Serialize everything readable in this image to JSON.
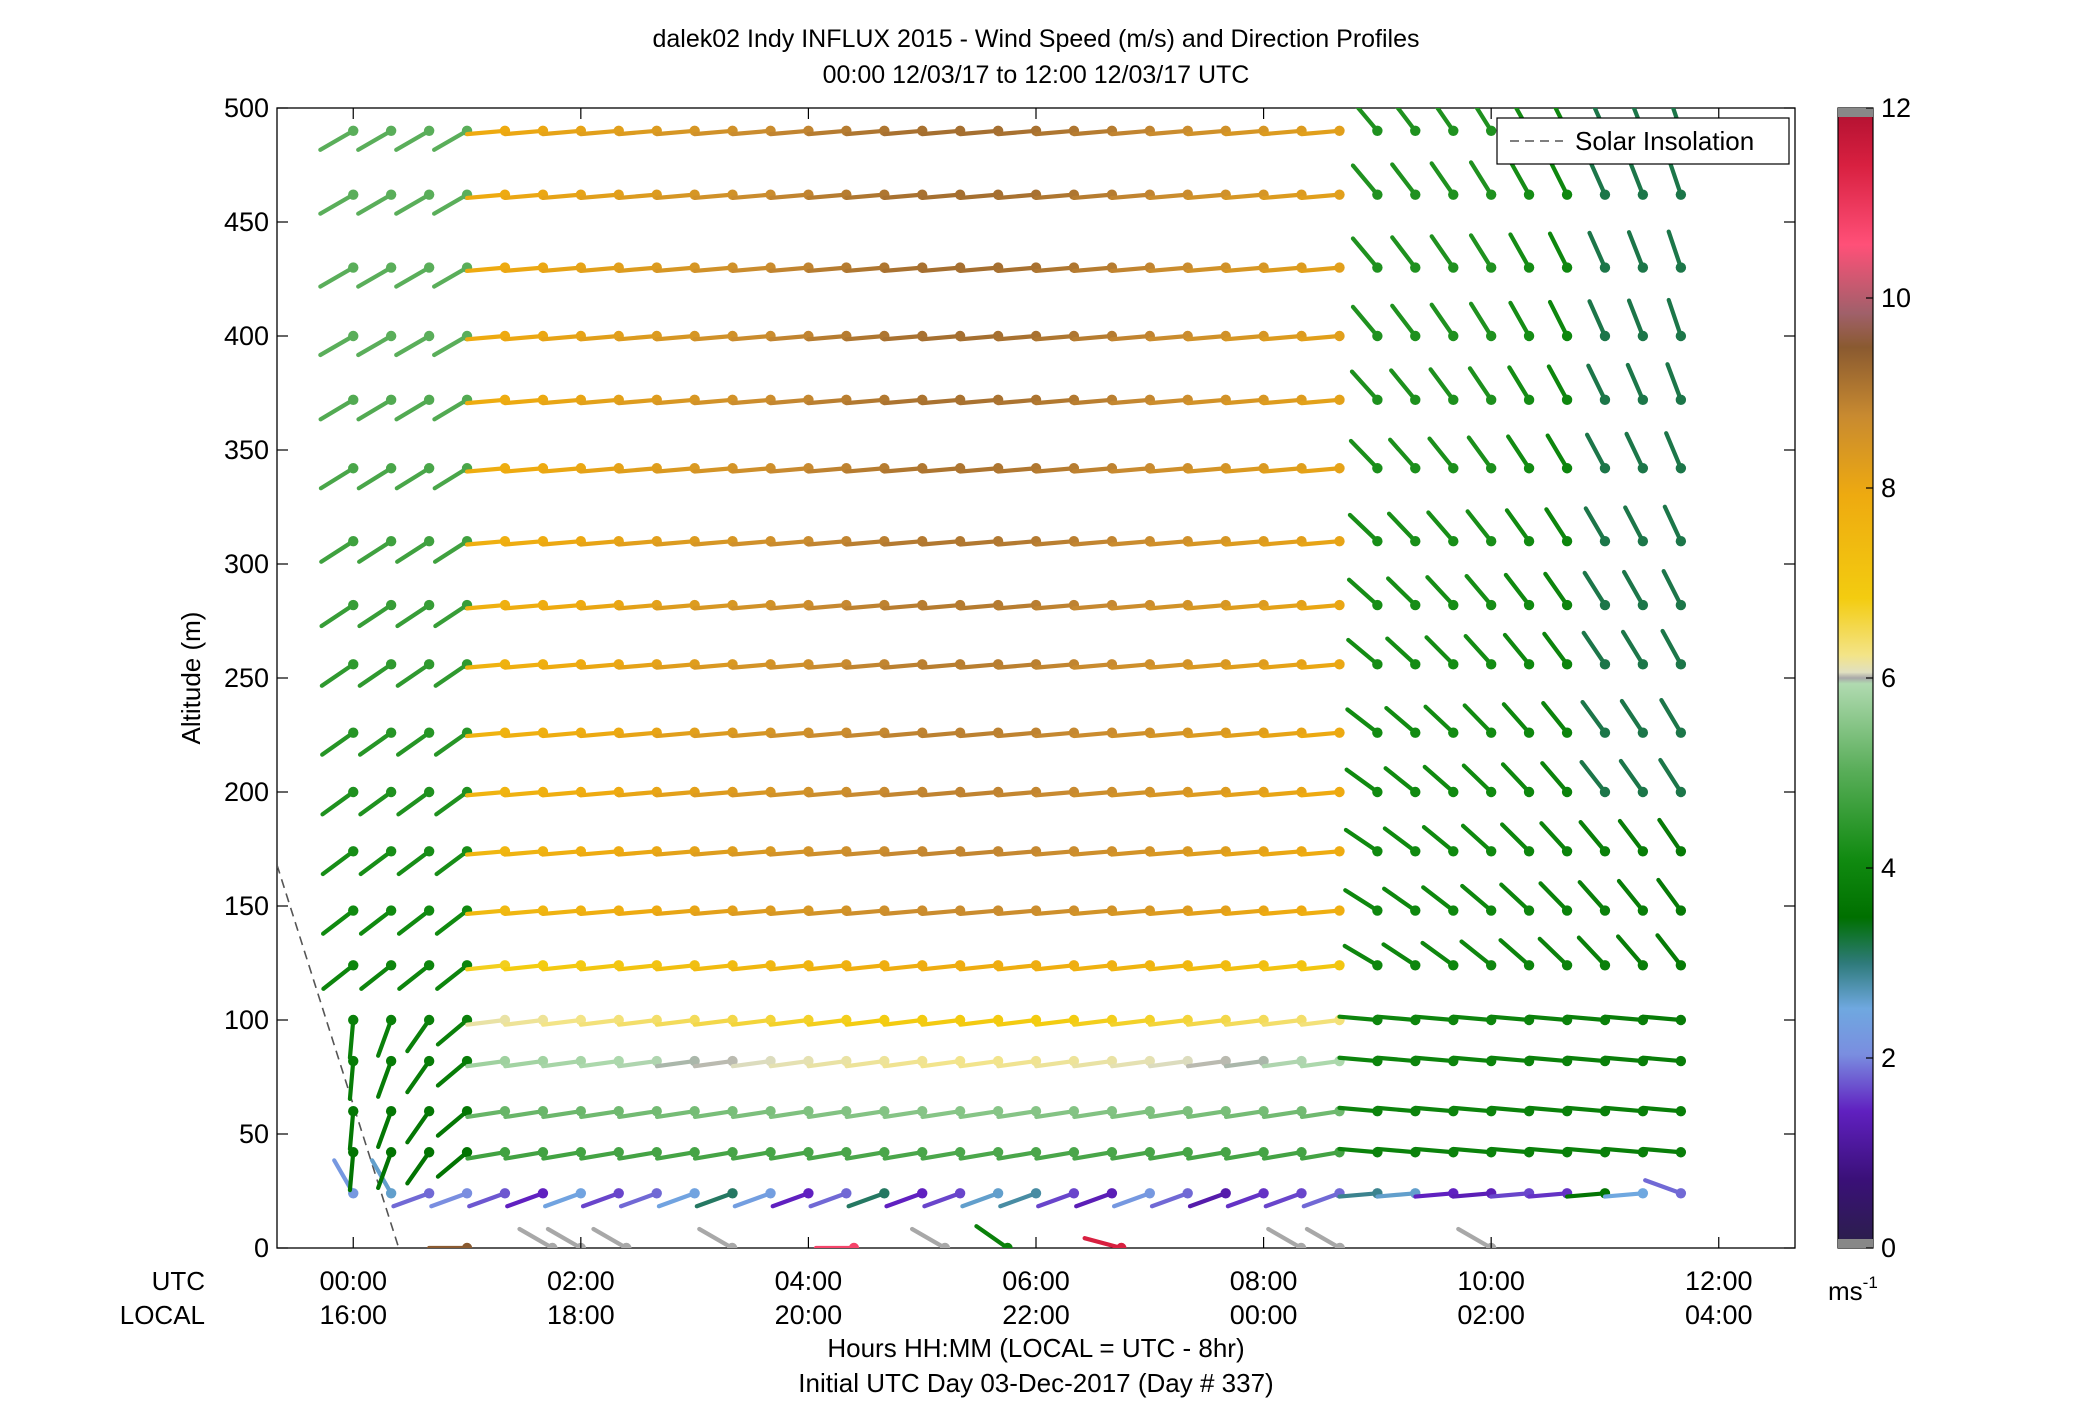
{
  "chart_data": {
    "type": "wind barb profile",
    "title": "dalek02 Indy INFLUX 2015 - Wind Speed (m/s) and Direction Profiles",
    "subtitle": "00:00 12/03/17 to 12:00 12/03/17  UTC",
    "ylabel": "Altitude (m)",
    "xlabel": "Hours HH:MM  (LOCAL = UTC - 8hr)",
    "xlabel2": "Initial UTC Day 03-Dec-2017 (Day # 337)",
    "utc_label": "UTC",
    "local_label": "LOCAL",
    "x_ticks_utc": [
      "00:00",
      "02:00",
      "04:00",
      "06:00",
      "08:00",
      "10:00",
      "12:00"
    ],
    "x_ticks_local": [
      "16:00",
      "18:00",
      "20:00",
      "22:00",
      "00:00",
      "02:00",
      "04:00"
    ],
    "y_ticks": [
      "0",
      "50",
      "100",
      "150",
      "200",
      "250",
      "300",
      "350",
      "400",
      "450",
      "500"
    ],
    "ylim": [
      0,
      500
    ],
    "xlim_hours": [
      -0.67,
      12.67
    ],
    "legend": {
      "label": "Solar Insolation",
      "placement": "top-right"
    },
    "colorbar": {
      "unit_label": "ms",
      "unit_exponent": "-1",
      "ticks": [
        "0",
        "2",
        "4",
        "6",
        "8",
        "10",
        "12"
      ],
      "range": [
        0,
        12
      ]
    },
    "solar_insolation": [
      [
        -0.67,
        168
      ],
      [
        0.4,
        0
      ]
    ],
    "altitudes_m": [
      0,
      24,
      42,
      60,
      82,
      100,
      124,
      148,
      174,
      200,
      226,
      256,
      282,
      310,
      342,
      372,
      400,
      430,
      462,
      490
    ],
    "time_hours": [
      0,
      0.333,
      0.667,
      1.0,
      1.333,
      1.667,
      2.0,
      2.333,
      2.667,
      3.0,
      3.333,
      3.667,
      4.0,
      4.333,
      4.667,
      5.0,
      5.333,
      5.667,
      6.0,
      6.333,
      6.667,
      7.0,
      7.333,
      7.667,
      8.0,
      8.333,
      8.667,
      9.0,
      9.333,
      9.667,
      10.0,
      10.333,
      10.667,
      11.0,
      11.333,
      11.667
    ],
    "surface_barbs": [
      {
        "t": 1.0,
        "speed": 9.5,
        "dir": 270
      },
      {
        "t": 1.75,
        "speed": 6.0,
        "dir": 300
      },
      {
        "t": 2.0,
        "speed": 6.0,
        "dir": 300
      },
      {
        "t": 2.4,
        "speed": 6.0,
        "dir": 300
      },
      {
        "t": 3.33,
        "speed": 6.0,
        "dir": 300
      },
      {
        "t": 4.4,
        "speed": 10.8,
        "dir": 270
      },
      {
        "t": 5.2,
        "speed": 6.0,
        "dir": 300
      },
      {
        "t": 5.75,
        "speed": 3.8,
        "dir": 305
      },
      {
        "t": 6.75,
        "speed": 11.4,
        "dir": 285
      },
      {
        "t": 8.33,
        "speed": 6.0,
        "dir": 300
      },
      {
        "t": 8.67,
        "speed": 6.0,
        "dir": 300
      },
      {
        "t": 10.0,
        "speed": 6.0,
        "dir": 300
      }
    ]
  }
}
